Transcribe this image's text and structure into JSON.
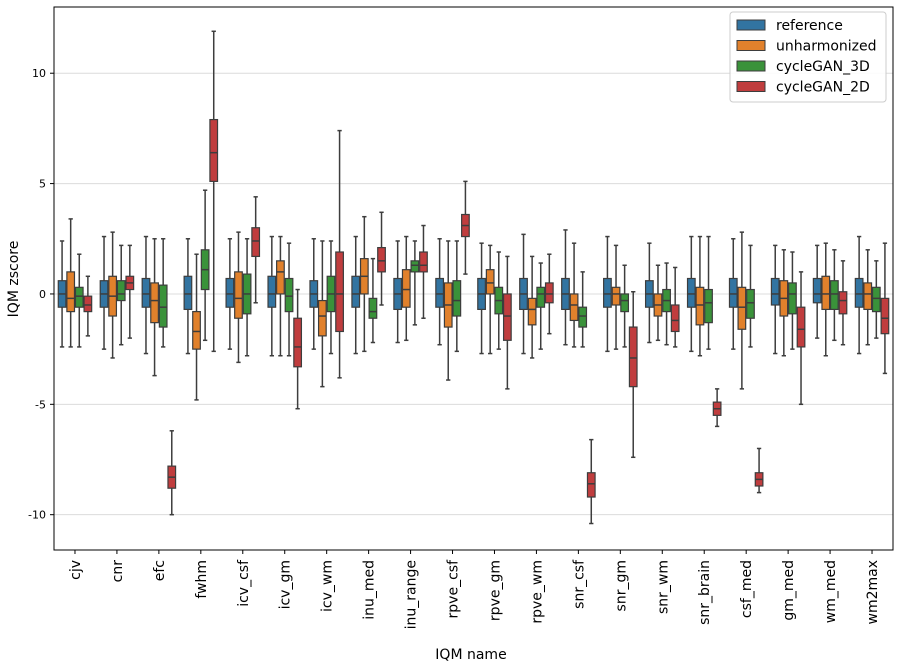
{
  "chart_data": {
    "type": "boxplot",
    "title": "",
    "xlabel": "IQM name",
    "ylabel": "IQM zscore",
    "ylim": [
      -11.6,
      13.0
    ],
    "yticks": [
      -10,
      -5,
      0,
      5,
      10
    ],
    "grid": "horizontal",
    "legend_position": "top-right",
    "categories": [
      "cjv",
      "cnr",
      "efc",
      "fwhm",
      "icv_csf",
      "icv_gm",
      "icv_wm",
      "inu_med",
      "inu_range",
      "rpve_csf",
      "rpve_gm",
      "rpve_wm",
      "snr_csf",
      "snr_gm",
      "snr_wm",
      "snr_brain",
      "csf_med",
      "gm_med",
      "wm_med",
      "wm2max"
    ],
    "series": [
      {
        "name": "reference",
        "color": "#3274a1",
        "boxes": [
          [
            -2.4,
            -0.6,
            0.0,
            0.6,
            2.4
          ],
          [
            -2.5,
            -0.6,
            0.0,
            0.6,
            2.6
          ],
          [
            -2.7,
            -0.6,
            0.0,
            0.7,
            2.6
          ],
          [
            -2.7,
            -0.7,
            0.0,
            0.8,
            2.5
          ],
          [
            -2.5,
            -0.6,
            0.0,
            0.7,
            2.5
          ],
          [
            -2.8,
            -0.6,
            0.0,
            0.8,
            2.6
          ],
          [
            -2.5,
            -0.6,
            0.0,
            0.6,
            2.5
          ],
          [
            -2.7,
            -0.6,
            0.0,
            0.8,
            2.6
          ],
          [
            -2.2,
            -0.7,
            0.0,
            0.7,
            2.4
          ],
          [
            -2.3,
            -0.6,
            0.0,
            0.7,
            2.5
          ],
          [
            -2.7,
            -0.7,
            0.0,
            0.7,
            2.3
          ],
          [
            -2.7,
            -0.7,
            0.0,
            0.7,
            2.7
          ],
          [
            -2.3,
            -0.7,
            0.0,
            0.7,
            2.9
          ],
          [
            -2.6,
            -0.6,
            0.0,
            0.7,
            2.6
          ],
          [
            -2.2,
            -0.6,
            0.0,
            0.6,
            2.3
          ],
          [
            -2.6,
            -0.6,
            0.0,
            0.7,
            2.6
          ],
          [
            -2.5,
            -0.6,
            0.0,
            0.7,
            2.5
          ],
          [
            -2.7,
            -0.5,
            0.0,
            0.7,
            2.2
          ],
          [
            -2.0,
            -0.4,
            0.0,
            0.7,
            2.2
          ],
          [
            -2.7,
            -0.6,
            0.0,
            0.7,
            2.6
          ]
        ]
      },
      {
        "name": "unharmonized",
        "color": "#e1812c",
        "boxes": [
          [
            -2.4,
            -0.8,
            -0.2,
            1.0,
            3.4
          ],
          [
            -2.9,
            -1.0,
            -0.1,
            0.8,
            2.8
          ],
          [
            -3.7,
            -1.3,
            -0.3,
            0.5,
            2.5
          ],
          [
            -4.8,
            -2.5,
            -1.7,
            -0.8,
            1.8
          ],
          [
            -3.1,
            -1.1,
            -0.2,
            1.0,
            2.8
          ],
          [
            -2.8,
            0.0,
            1.0,
            1.5,
            2.6
          ],
          [
            -4.2,
            -1.9,
            -1.0,
            -0.3,
            2.4
          ],
          [
            -2.6,
            0.0,
            0.8,
            1.6,
            3.5
          ],
          [
            -2.1,
            -0.6,
            0.2,
            1.1,
            2.6
          ],
          [
            -3.9,
            -1.5,
            -0.5,
            0.5,
            2.4
          ],
          [
            -2.7,
            0.0,
            0.5,
            1.1,
            2.2
          ],
          [
            -2.9,
            -1.4,
            -0.7,
            -0.2,
            1.7
          ],
          [
            -2.4,
            -1.2,
            -0.5,
            0.0,
            2.3
          ],
          [
            -2.5,
            -0.5,
            0.0,
            0.3,
            2.2
          ],
          [
            -2.1,
            -1.0,
            -0.5,
            0.0,
            1.3
          ],
          [
            -2.8,
            -1.4,
            -0.5,
            0.3,
            2.6
          ],
          [
            -4.3,
            -1.6,
            -0.6,
            0.3,
            2.8
          ],
          [
            -2.8,
            -1.0,
            -0.2,
            0.6,
            2.0
          ],
          [
            -2.8,
            -0.7,
            0.0,
            0.8,
            2.3
          ],
          [
            -2.3,
            -0.7,
            0.0,
            0.5,
            2.0
          ]
        ]
      },
      {
        "name": "cycleGAN_3D",
        "color": "#3a923a",
        "boxes": [
          [
            -2.4,
            -0.6,
            -0.1,
            0.3,
            1.8
          ],
          [
            -2.3,
            -0.3,
            0.0,
            0.6,
            2.2
          ],
          [
            -2.4,
            -1.5,
            -0.6,
            0.4,
            2.5
          ],
          [
            -2.1,
            0.2,
            1.1,
            2.0,
            4.7
          ],
          [
            -2.8,
            -0.9,
            0.0,
            0.9,
            2.5
          ],
          [
            -2.8,
            -0.8,
            -0.1,
            0.7,
            2.3
          ],
          [
            -2.7,
            -0.8,
            0.0,
            0.8,
            2.4
          ],
          [
            -2.2,
            -1.1,
            -0.8,
            -0.2,
            1.6
          ],
          [
            -1.4,
            1.0,
            1.3,
            1.5,
            2.4
          ],
          [
            -2.6,
            -1.0,
            -0.3,
            0.6,
            2.4
          ],
          [
            -2.5,
            -0.9,
            -0.3,
            0.3,
            1.9
          ],
          [
            -2.5,
            -0.6,
            0.0,
            0.3,
            1.4
          ],
          [
            -2.4,
            -1.5,
            -1.0,
            -0.6,
            1.0
          ],
          [
            -2.4,
            -0.8,
            -0.3,
            0.0,
            1.3
          ],
          [
            -2.3,
            -0.8,
            -0.3,
            0.2,
            1.4
          ],
          [
            -2.5,
            -1.3,
            -0.4,
            0.2,
            2.6
          ],
          [
            -2.4,
            -1.1,
            -0.4,
            0.2,
            2.2
          ],
          [
            -2.5,
            -0.9,
            0.0,
            0.5,
            1.9
          ],
          [
            -2.1,
            -0.7,
            0.0,
            0.6,
            2.0
          ],
          [
            -2.0,
            -0.8,
            -0.2,
            0.3,
            1.5
          ]
        ]
      },
      {
        "name": "cycleGAN_2D",
        "color": "#c03d3e",
        "boxes": [
          [
            -1.9,
            -0.8,
            -0.5,
            -0.1,
            0.8
          ],
          [
            -2.0,
            0.2,
            0.5,
            0.8,
            2.2
          ],
          [
            -10.0,
            -8.8,
            -8.3,
            -7.8,
            -6.2
          ],
          [
            -2.6,
            5.1,
            6.4,
            7.9,
            11.9
          ],
          [
            -0.4,
            1.7,
            2.4,
            3.0,
            4.4
          ],
          [
            -5.2,
            -3.3,
            -2.4,
            -1.1,
            0.2
          ],
          [
            -3.8,
            -1.7,
            0.0,
            1.9,
            7.4
          ],
          [
            -0.5,
            1.0,
            1.5,
            2.1,
            3.7
          ],
          [
            -1.1,
            1.0,
            1.3,
            1.9,
            3.1
          ],
          [
            0.9,
            2.6,
            3.1,
            3.6,
            5.1
          ],
          [
            -4.3,
            -2.1,
            -1.0,
            0.0,
            1.7
          ],
          [
            -1.8,
            -0.4,
            0.0,
            0.5,
            1.8
          ],
          [
            -10.4,
            -9.2,
            -8.6,
            -8.1,
            -6.6
          ],
          [
            -7.4,
            -4.2,
            -2.9,
            -1.5,
            0.1
          ],
          [
            -2.4,
            -1.7,
            -1.2,
            -0.5,
            1.2
          ],
          [
            -6.0,
            -5.5,
            -5.2,
            -4.9,
            -4.3
          ],
          [
            -9.0,
            -8.7,
            -8.4,
            -8.1,
            -7.0
          ],
          [
            -5.0,
            -2.4,
            -1.6,
            -0.6,
            1.0
          ],
          [
            -2.3,
            -0.9,
            -0.3,
            0.1,
            1.5
          ],
          [
            -3.6,
            -1.8,
            -1.1,
            -0.2,
            2.3
          ]
        ]
      }
    ]
  }
}
